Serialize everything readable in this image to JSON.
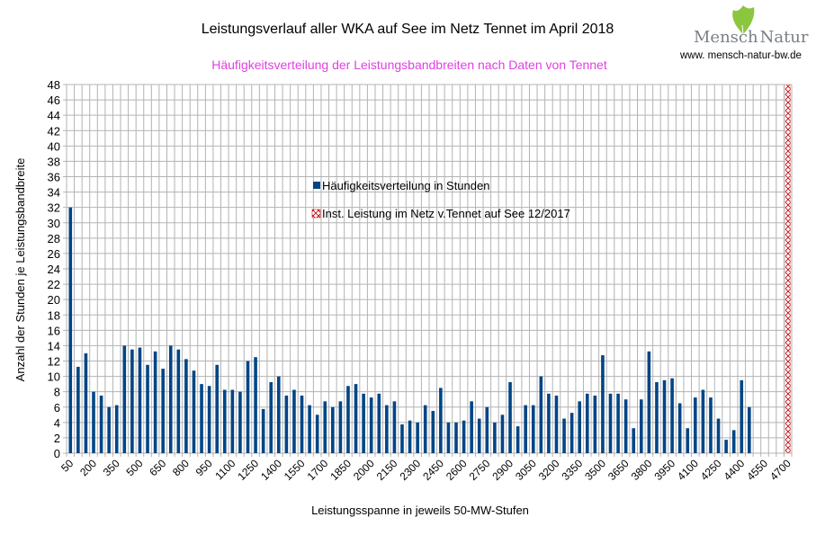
{
  "logo": {
    "name_part1": "Mensch",
    "name_part2": "Natur",
    "url": "www. mensch-natur-bw.de",
    "leaf_color": "#8cc63f"
  },
  "chart_data": {
    "type": "bar",
    "title": "Leistungsverlauf aller WKA auf See im Netz Tennet im April 2018",
    "subtitle": "Häufigkeitsverteilung der Leistungsbandbreiten nach Daten von Tennet",
    "xlabel": "Leistungsspanne in jeweils 50-MW-Stufen",
    "ylabel": "Anzahl der Stunden je Leistungsbandbreite",
    "ylim": [
      0,
      48
    ],
    "y_ticks": [
      0,
      2,
      4,
      6,
      8,
      10,
      12,
      14,
      16,
      18,
      20,
      22,
      24,
      26,
      28,
      30,
      32,
      34,
      36,
      38,
      40,
      42,
      44,
      46,
      48
    ],
    "x_start": 50,
    "x_step": 50,
    "x_end": 4700,
    "x_tick_labels": [
      "50",
      "200",
      "350",
      "500",
      "650",
      "800",
      "950",
      "1100",
      "1250",
      "1400",
      "1550",
      "1700",
      "1850",
      "2000",
      "2150",
      "2300",
      "2450",
      "2600",
      "2750",
      "2900",
      "3050",
      "3200",
      "3350",
      "3500",
      "3650",
      "3800",
      "3950",
      "4100",
      "4250",
      "4400",
      "4550",
      "4700"
    ],
    "grid": true,
    "legend_position": "center",
    "series": [
      {
        "name": "Häufigkeitsverteilung in Stunden",
        "color": "#004586",
        "style": "solid",
        "categories_from": 50,
        "values": [
          32,
          11.25,
          13,
          8,
          7.5,
          6,
          6.25,
          14,
          13.5,
          13.75,
          11.5,
          13.25,
          11,
          14,
          13.5,
          12.25,
          10.75,
          9,
          8.75,
          11.5,
          8.25,
          8.25,
          8,
          12,
          12.5,
          5.75,
          9.25,
          10,
          7.5,
          8.25,
          7.5,
          6.25,
          5,
          6.75,
          6,
          6.75,
          8.75,
          9,
          7.75,
          7.25,
          7.75,
          6.25,
          6.75,
          3.75,
          4.25,
          4,
          6.25,
          5.5,
          8.5,
          4,
          4,
          4.25,
          6.75,
          4.5,
          6,
          4,
          5,
          9.25,
          3.5,
          6.25,
          6.25,
          10,
          7.75,
          7.5,
          4.5,
          5.25,
          6.75,
          7.75,
          7.5,
          12.75,
          7.75,
          7.75,
          7,
          3.25,
          7,
          13.25,
          9.25,
          9.5,
          9.75,
          6.5,
          3.25,
          7.25,
          8.25,
          7.25,
          4.5,
          1.75,
          3,
          9.5,
          6
        ]
      },
      {
        "name": "Inst. Leistung im Netz v.Tennet auf See 12/2017",
        "color": "#c00000",
        "style": "hatched",
        "category": 4700,
        "value": 48
      }
    ]
  }
}
